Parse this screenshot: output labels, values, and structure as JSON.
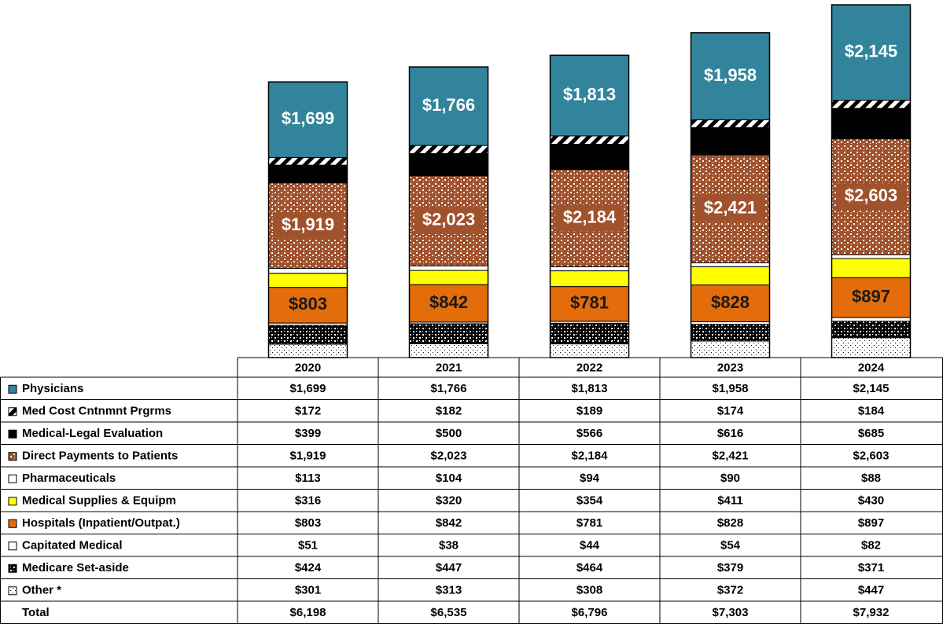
{
  "chart_data": {
    "type": "bar",
    "stacked": true,
    "categories": [
      "2020",
      "2021",
      "2022",
      "2023",
      "2024"
    ],
    "series": [
      {
        "name": "Physicians",
        "color": "#31849b",
        "pattern": "solid",
        "show_labels": true,
        "values": [
          1699,
          1766,
          1813,
          1958,
          2145
        ],
        "value_labels": [
          "$1,699",
          "$1,766",
          "$1,813",
          "$1,958",
          "$2,145"
        ]
      },
      {
        "name": "Med Cost Cntnmnt Prgrms",
        "color": "#000000",
        "pattern": "stripes",
        "values": [
          172,
          182,
          189,
          174,
          184
        ],
        "value_labels": [
          "$172",
          "$182",
          "$189",
          "$174",
          "$184"
        ]
      },
      {
        "name": "Medical-Legal Evaluation",
        "color": "#000000",
        "pattern": "solid",
        "values": [
          399,
          500,
          566,
          616,
          685
        ],
        "value_labels": [
          "$399",
          "$500",
          "$566",
          "$616",
          "$685"
        ]
      },
      {
        "name": "Direct Payments to Patients",
        "color": "#a0522d",
        "pattern": "speckle",
        "show_labels": true,
        "values": [
          1919,
          2023,
          2184,
          2421,
          2603
        ],
        "value_labels": [
          "$1,919",
          "$2,023",
          "$2,184",
          "$2,421",
          "$2,603"
        ]
      },
      {
        "name": "Pharmaceuticals",
        "color": "#ffffff",
        "pattern": "solid",
        "values": [
          113,
          104,
          94,
          90,
          88
        ],
        "value_labels": [
          "$113",
          "$104",
          "$94",
          "$90",
          "$88"
        ]
      },
      {
        "name": "Medical Supplies & Equipm",
        "color": "#ffff00",
        "pattern": "solid",
        "values": [
          316,
          320,
          354,
          411,
          430
        ],
        "value_labels": [
          "$316",
          "$320",
          "$354",
          "$411",
          "$430"
        ]
      },
      {
        "name": "Hospitals (Inpatient/Outpat.)",
        "color": "#e46c0a",
        "pattern": "solid",
        "show_labels": true,
        "values": [
          803,
          842,
          781,
          828,
          897
        ],
        "value_labels": [
          "$803",
          "$842",
          "$781",
          "$828",
          "$897"
        ]
      },
      {
        "name": "Capitated Medical",
        "color": "#ffffff",
        "pattern": "solid",
        "values": [
          51,
          38,
          44,
          54,
          82
        ],
        "value_labels": [
          "$51",
          "$38",
          "$44",
          "$54",
          "$82"
        ]
      },
      {
        "name": "Medicare Set-aside",
        "color": "#000000",
        "pattern": "checker",
        "values": [
          424,
          447,
          464,
          379,
          371
        ],
        "value_labels": [
          "$424",
          "$447",
          "$464",
          "$379",
          "$371"
        ]
      },
      {
        "name": "Other *",
        "color": "#000000",
        "pattern": "dots",
        "values": [
          301,
          313,
          308,
          372,
          447
        ],
        "value_labels": [
          "$301",
          "$313",
          "$308",
          "$372",
          "$447"
        ]
      }
    ],
    "total": {
      "name": "Total",
      "values": [
        6198,
        6535,
        6796,
        7303,
        7932
      ],
      "value_labels": [
        "$6,198",
        "$6,535",
        "$6,796",
        "$7,303",
        "$7,932"
      ]
    }
  }
}
